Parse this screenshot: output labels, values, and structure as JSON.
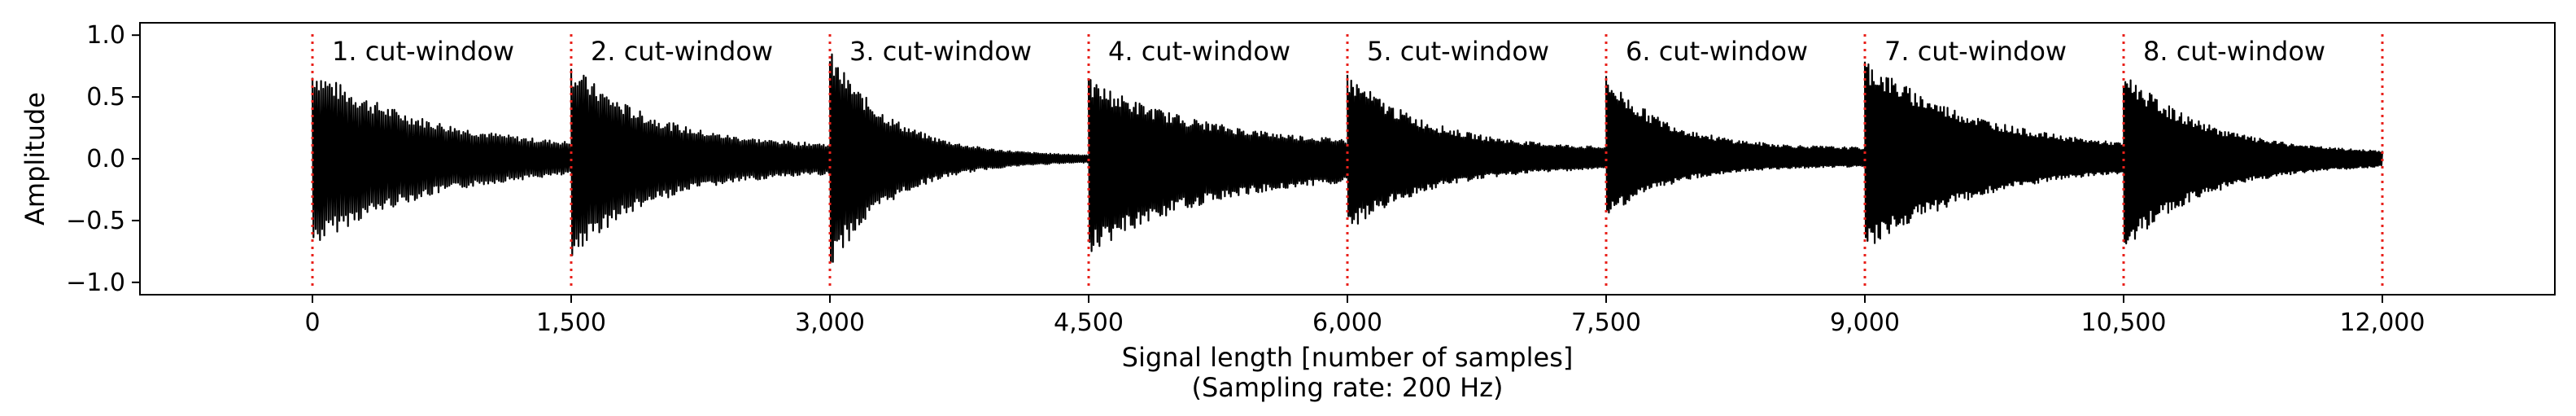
{
  "chart_data": {
    "type": "line",
    "title": "",
    "xlabel": "Signal length [number of samples]",
    "xlabel_line2": "(Sampling rate: 200 Hz)",
    "ylabel": "Amplitude",
    "xlim": [
      -1000,
      13000
    ],
    "ylim": [
      -1.1,
      1.1
    ],
    "x_ticks": [
      0,
      1500,
      3000,
      4500,
      6000,
      7500,
      9000,
      10500,
      12000
    ],
    "x_tick_labels": [
      "0",
      "1,500",
      "3,000",
      "4,500",
      "6,000",
      "7,500",
      "9,000",
      "10,500",
      "12,000"
    ],
    "y_ticks": [
      -1.0,
      -0.5,
      0.0,
      0.5,
      1.0
    ],
    "y_tick_labels": [
      "−1.0",
      "−0.5",
      "0.0",
      "0.5",
      "1.0"
    ],
    "grid": false,
    "line_color": "#000000",
    "boundary_color": "#e8201a",
    "cut_boundaries": [
      0,
      1500,
      3000,
      4500,
      6000,
      7500,
      9000,
      10500,
      12000
    ],
    "windows": [
      {
        "label": "1. cut-window",
        "start": 0,
        "end": 1500,
        "peak_pos": 0.75,
        "peak_neg": -0.72,
        "tail": 0.08
      },
      {
        "label": "2. cut-window",
        "start": 1500,
        "end": 3000,
        "peak_pos": 0.78,
        "peak_neg": -0.82,
        "tail": 0.12
      },
      {
        "label": "3. cut-window",
        "start": 3000,
        "end": 4500,
        "peak_pos": 0.88,
        "peak_neg": -0.9,
        "tail": 0.02
      },
      {
        "label": "4. cut-window",
        "start": 4500,
        "end": 6000,
        "peak_pos": 0.65,
        "peak_neg": -0.78,
        "tail": 0.15
      },
      {
        "label": "5. cut-window",
        "start": 6000,
        "end": 7500,
        "peak_pos": 0.7,
        "peak_neg": -0.6,
        "tail": 0.1
      },
      {
        "label": "6. cut-window",
        "start": 7500,
        "end": 9000,
        "peak_pos": 0.68,
        "peak_neg": -0.48,
        "tail": 0.12
      },
      {
        "label": "7. cut-window",
        "start": 9000,
        "end": 10500,
        "peak_pos": 0.82,
        "peak_neg": -0.75,
        "tail": 0.05
      },
      {
        "label": "8. cut-window",
        "start": 10500,
        "end": 12000,
        "peak_pos": 0.72,
        "peak_neg": -0.75,
        "tail": 0.05
      }
    ]
  }
}
